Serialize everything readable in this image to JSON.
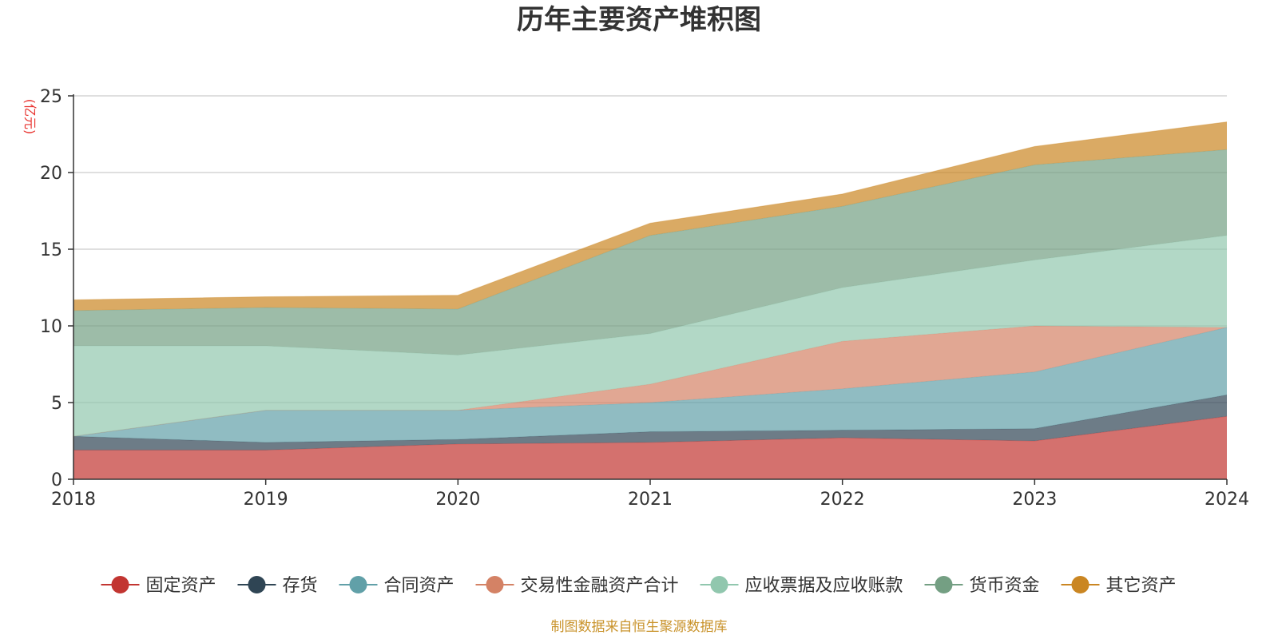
{
  "chart_data": {
    "type": "area",
    "stacked": true,
    "title": "历年主要资产堆积图",
    "unit_label": "(亿元)",
    "unit_color": "#e8332f",
    "x": [
      "2018",
      "2019",
      "2020",
      "2021",
      "2022",
      "2023",
      "2024"
    ],
    "ylim": [
      0,
      25
    ],
    "yticks": [
      0,
      5,
      10,
      15,
      20,
      25
    ],
    "grid": true,
    "legend_position": "bottom",
    "series": [
      {
        "name": "固定资产",
        "color": "#c23531",
        "values": [
          1.9,
          1.9,
          2.3,
          2.4,
          2.7,
          2.5,
          4.1
        ]
      },
      {
        "name": "存货",
        "color": "#2f4554",
        "values": [
          0.9,
          0.5,
          0.3,
          0.7,
          0.5,
          0.8,
          1.4
        ]
      },
      {
        "name": "合同资产",
        "color": "#61a0a8",
        "values": [
          0.0,
          2.1,
          1.9,
          1.9,
          2.7,
          3.7,
          4.4
        ]
      },
      {
        "name": "交易性金融资产合计",
        "color": "#d48265",
        "values": [
          0.0,
          0.0,
          0.0,
          1.2,
          3.1,
          3.0,
          0.0
        ]
      },
      {
        "name": "应收票据及应收账款",
        "color": "#91c7ae",
        "values": [
          5.9,
          4.2,
          3.6,
          3.3,
          3.5,
          4.3,
          6.0
        ]
      },
      {
        "name": "货币资金",
        "color": "#749f83",
        "values": [
          2.3,
          2.5,
          3.0,
          6.4,
          5.3,
          6.2,
          5.6
        ]
      },
      {
        "name": "其它资产",
        "color": "#ca8622",
        "values": [
          0.7,
          0.7,
          0.9,
          0.8,
          0.8,
          1.2,
          1.8
        ]
      }
    ]
  },
  "source_note": "制图数据来自恒生聚源数据库",
  "source_note_color": "#c9932b"
}
